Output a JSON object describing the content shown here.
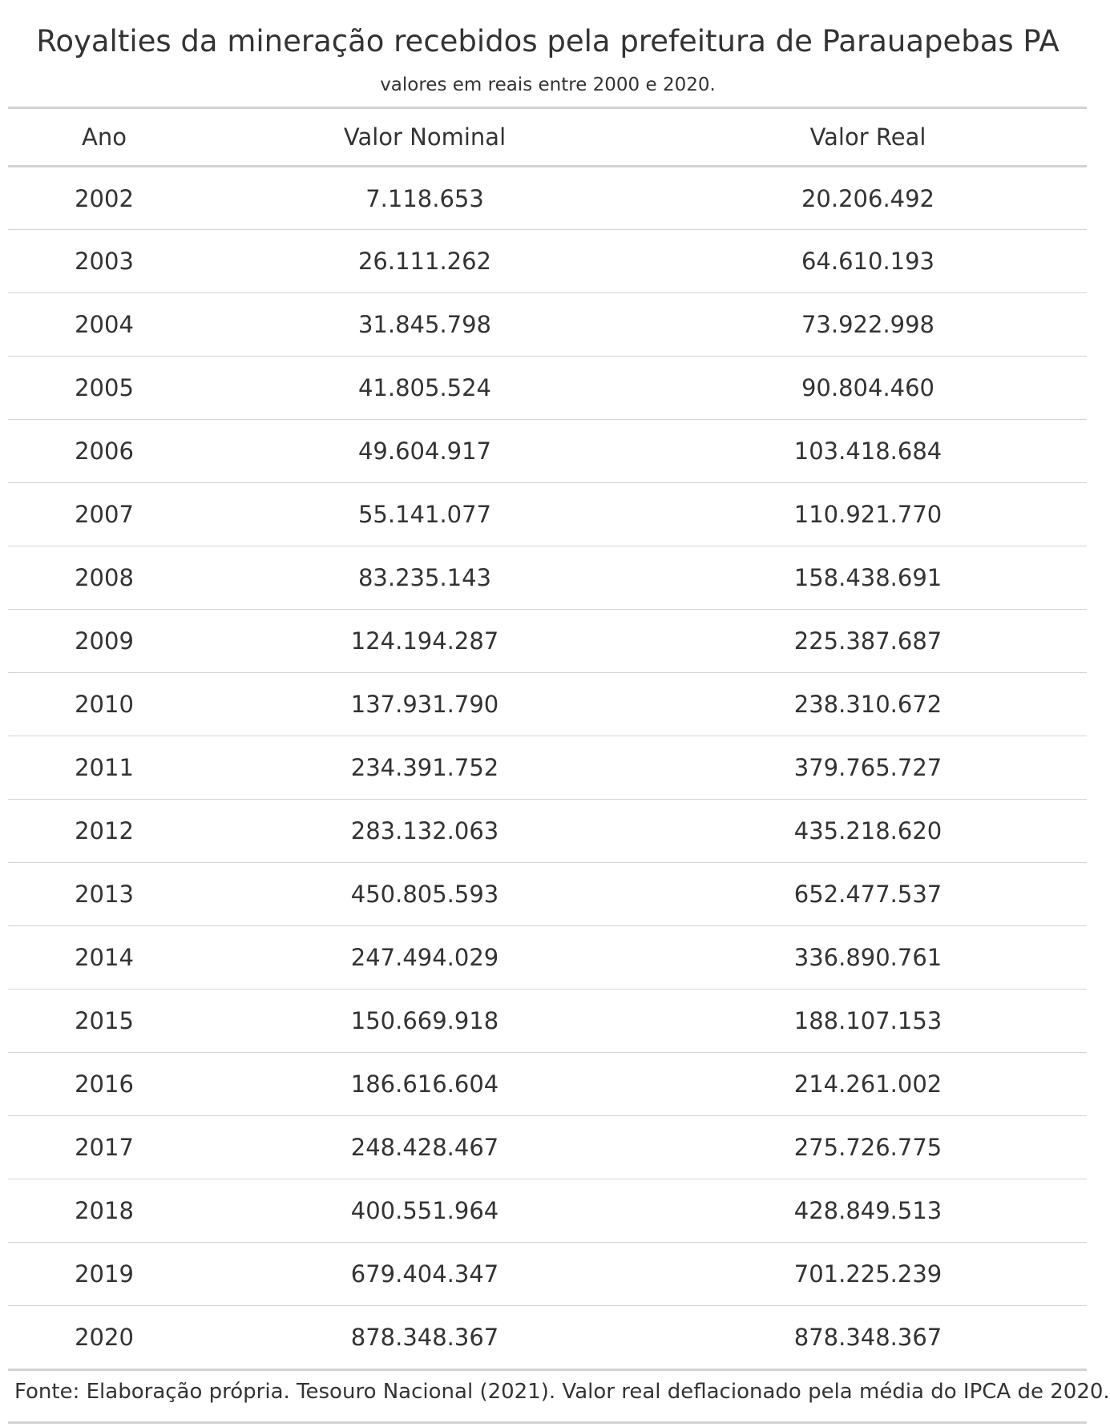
{
  "table": {
    "title": "Royalties da mineração recebidos pela prefeitura de Parauapebas PA",
    "subtitle": "valores em reais entre 2000 e 2020.",
    "columns": [
      "Ano",
      "Valor Nominal",
      "Valor Real"
    ],
    "rows": [
      [
        "2002",
        "7.118.653",
        "20.206.492"
      ],
      [
        "2003",
        "26.111.262",
        "64.610.193"
      ],
      [
        "2004",
        "31.845.798",
        "73.922.998"
      ],
      [
        "2005",
        "41.805.524",
        "90.804.460"
      ],
      [
        "2006",
        "49.604.917",
        "103.418.684"
      ],
      [
        "2007",
        "55.141.077",
        "110.921.770"
      ],
      [
        "2008",
        "83.235.143",
        "158.438.691"
      ],
      [
        "2009",
        "124.194.287",
        "225.387.687"
      ],
      [
        "2010",
        "137.931.790",
        "238.310.672"
      ],
      [
        "2011",
        "234.391.752",
        "379.765.727"
      ],
      [
        "2012",
        "283.132.063",
        "435.218.620"
      ],
      [
        "2013",
        "450.805.593",
        "652.477.537"
      ],
      [
        "2014",
        "247.494.029",
        "336.890.761"
      ],
      [
        "2015",
        "150.669.918",
        "188.107.153"
      ],
      [
        "2016",
        "186.616.604",
        "214.261.002"
      ],
      [
        "2017",
        "248.428.467",
        "275.726.775"
      ],
      [
        "2018",
        "400.551.964",
        "428.849.513"
      ],
      [
        "2019",
        "679.404.347",
        "701.225.239"
      ],
      [
        "2020",
        "878.348.367",
        "878.348.367"
      ]
    ],
    "footnote": "Fonte: Elaboração própria. Tesouro Nacional (2021). Valor real deflacionado pela média do IPCA de 2020.",
    "colors": {
      "text": "#333333",
      "rule": "#d3d3d3",
      "background": "#ffffff"
    }
  }
}
